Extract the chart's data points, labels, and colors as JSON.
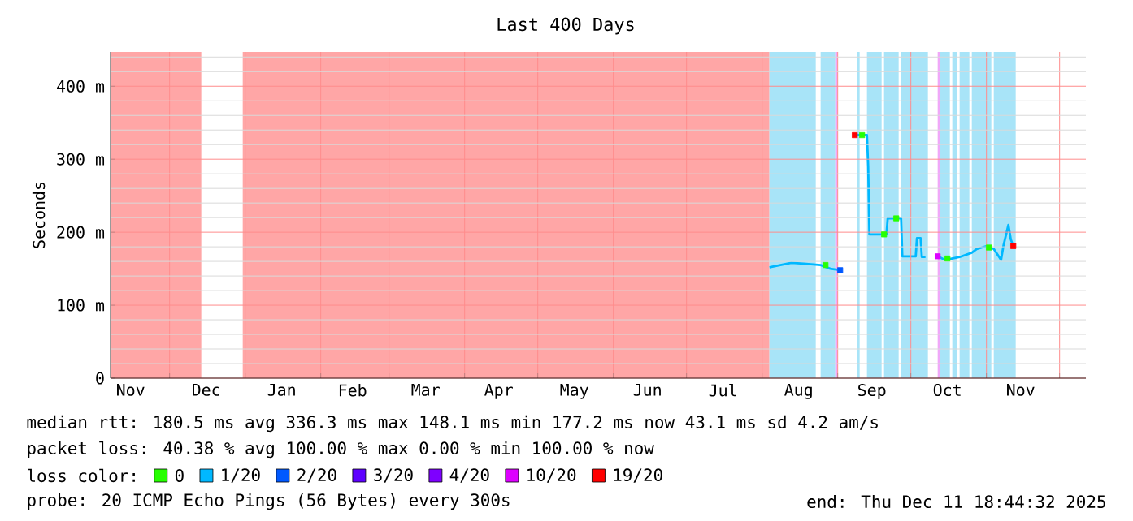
{
  "chart_data": {
    "type": "line",
    "title": "Last 400 Days",
    "ylabel": "Seconds",
    "xlim": [
      "2024-11-06T18:44",
      "2025-12-11T18:44"
    ],
    "xticks": [
      {
        "value": "2024-12-01",
        "label": null
      },
      {
        "value": "2025-01-01",
        "label": null
      },
      {
        "value": "2025-02-01",
        "label": null
      },
      {
        "value": "2025-03-01",
        "label": null
      },
      {
        "value": "2025-04-01",
        "label": null
      },
      {
        "value": "2025-05-01",
        "label": null
      },
      {
        "value": "2025-06-01",
        "label": null
      },
      {
        "value": "2025-07-01",
        "label": null
      },
      {
        "value": "2025-08-01",
        "label": null
      },
      {
        "value": "2025-09-01",
        "label": null
      },
      {
        "value": "2025-10-01",
        "label": null
      },
      {
        "value": "2025-11-01",
        "label": null
      },
      {
        "value": "2025-12-01",
        "label": null
      },
      {
        "value": "2024-11-15",
        "label": "Nov"
      },
      {
        "value": "2024-12-16",
        "label": "Dec"
      },
      {
        "value": "2025-01-16",
        "label": "Jan"
      },
      {
        "value": "2025-02-14",
        "label": "Feb"
      },
      {
        "value": "2025-03-16",
        "label": "Mar"
      },
      {
        "value": "2025-04-15",
        "label": "Apr"
      },
      {
        "value": "2025-05-16",
        "label": "May"
      },
      {
        "value": "2025-06-15",
        "label": "Jun"
      },
      {
        "value": "2025-07-16",
        "label": "Jul"
      },
      {
        "value": "2025-08-16",
        "label": "Aug"
      },
      {
        "value": "2025-09-15",
        "label": "Sep"
      },
      {
        "value": "2025-10-16",
        "label": "Oct"
      },
      {
        "value": "2025-11-15",
        "label": "Nov"
      }
    ],
    "ylim": [
      0,
      447
    ],
    "yticks": [
      0,
      {
        "value": 20,
        "label": null
      },
      {
        "value": 40,
        "label": null
      },
      {
        "value": 60,
        "label": null
      },
      {
        "value": 80,
        "label": null
      },
      {
        "value": 100,
        "label": "100 m"
      },
      {
        "value": 120,
        "label": null
      },
      {
        "value": 140,
        "label": null
      },
      {
        "value": 160,
        "label": null
      },
      {
        "value": 180,
        "label": null
      },
      {
        "value": 200,
        "label": "200 m"
      },
      {
        "value": 220,
        "label": null
      },
      {
        "value": 240,
        "label": null
      },
      {
        "value": 260,
        "label": null
      },
      {
        "value": 280,
        "label": null
      },
      {
        "value": 300,
        "label": "300 m"
      },
      {
        "value": 320,
        "label": null
      },
      {
        "value": 340,
        "label": null
      },
      {
        "value": 360,
        "label": null
      },
      {
        "value": 380,
        "label": null
      },
      {
        "value": 400,
        "label": "400 m"
      },
      {
        "value": 420,
        "label": null
      },
      {
        "value": 440,
        "label": null
      }
    ],
    "grid": true,
    "legend": "bottom",
    "bands": [
      {
        "axis": "x",
        "from": "2024-11-06T18:44",
        "to": "2024-12-14",
        "color": "#ffa6a6"
      },
      {
        "axis": "x",
        "from": "2024-12-31",
        "to": "2025-08-04",
        "color": "#ffa6a6"
      },
      {
        "axis": "x",
        "from": "2025-08-04",
        "to": "2025-08-23",
        "color": "#a8e4f8"
      },
      {
        "axis": "x",
        "from": "2025-08-25",
        "to": "2025-08-31",
        "color": "#a8e4f8"
      },
      {
        "axis": "x",
        "from": "2025-08-31",
        "to": "2025-09-01",
        "color": "#f0a8f8"
      },
      {
        "axis": "x",
        "from": "2025-09-09",
        "to": "2025-09-10",
        "color": "#a8e4f8"
      },
      {
        "axis": "x",
        "from": "2025-09-13",
        "to": "2025-09-19",
        "color": "#a8e4f8"
      },
      {
        "axis": "x",
        "from": "2025-09-20",
        "to": "2025-09-26",
        "color": "#a8e4f8"
      },
      {
        "axis": "x",
        "from": "2025-09-27",
        "to": "2025-10-08",
        "color": "#a8e4f8"
      },
      {
        "axis": "x",
        "from": "2025-10-12",
        "to": "2025-10-13",
        "color": "#f0a8f8"
      },
      {
        "axis": "x",
        "from": "2025-10-13",
        "to": "2025-10-17",
        "color": "#a8e4f8"
      },
      {
        "axis": "x",
        "from": "2025-10-18",
        "to": "2025-10-20",
        "color": "#a8e4f8"
      },
      {
        "axis": "x",
        "from": "2025-10-21",
        "to": "2025-10-25",
        "color": "#a8e4f8"
      },
      {
        "axis": "x",
        "from": "2025-10-26",
        "to": "2025-11-03",
        "color": "#a8e4f8"
      },
      {
        "axis": "x",
        "from": "2025-11-04",
        "to": "2025-11-13",
        "color": "#a8e4f8"
      }
    ],
    "series": [
      {
        "name": "0",
        "color": "#26ff00",
        "type": "scatter",
        "marker": "square",
        "x": [
          "2025-08-27",
          "2025-09-11",
          "2025-09-20",
          "2025-09-25",
          "2025-10-16",
          "2025-11-02"
        ],
        "values": [
          155,
          333,
          197,
          219,
          164,
          179
        ]
      },
      {
        "name": "1/20",
        "color": "#00b8ff",
        "type": "line",
        "x": [
          "2025-08-04",
          "2025-08-13",
          "2025-08-18",
          "2025-08-25",
          "2025-08-29",
          "2025-09-02",
          "2025-09-05",
          "2025-09-09",
          "2025-09-13",
          "2025-09-13T12:00",
          "2025-09-14",
          "2025-09-21",
          "2025-09-21T12:00",
          "2025-09-27",
          "2025-09-27T12:00",
          "2025-10-03",
          "2025-10-03T12:00",
          "2025-10-05",
          "2025-10-05T12:00",
          "2025-10-07",
          "2025-10-10",
          "2025-10-12",
          "2025-10-15",
          "2025-10-21",
          "2025-10-26",
          "2025-10-28",
          "2025-11-01",
          "2025-11-04",
          "2025-11-07",
          "2025-11-08",
          "2025-11-10",
          "2025-11-11",
          "2025-11-12"
        ],
        "values": [
          152,
          158,
          157,
          155,
          150,
          148,
          null,
          333,
          333,
          290,
          197,
          197,
          219,
          219,
          167,
          167,
          192,
          192,
          166,
          166,
          null,
          167,
          162,
          166,
          172,
          177,
          181,
          177,
          162,
          182,
          210,
          190,
          181
        ]
      },
      {
        "name": "2/20",
        "color": "#0059ff",
        "type": "scatter",
        "marker": "square",
        "x": [
          "2025-09-02"
        ],
        "values": [
          148
        ]
      },
      {
        "name": "3/20",
        "color": "#5e00ff",
        "type": "scatter",
        "marker": "square"
      },
      {
        "name": "4/20",
        "color": "#7e00ff",
        "type": "scatter",
        "marker": "square"
      },
      {
        "name": "10/20",
        "color": "#dd00ff",
        "type": "scatter",
        "marker": "square",
        "x": [
          "2025-10-12"
        ],
        "values": [
          167
        ]
      },
      {
        "name": "19/20",
        "color": "#ff0000",
        "type": "scatter",
        "marker": "square",
        "x": [
          "2025-09-08",
          "2025-11-12"
        ],
        "values": [
          333,
          181
        ]
      }
    ],
    "annotations": [
      "median rtt: 180.5 ms avg 336.3 ms max 148.1 ms min 177.2 ms now 43.1 ms sd 4.2 am/s",
      "packet loss: 40.38 % avg 100.00 % max 0.00 % min 100.00 % now",
      "loss color:",
      "probe: 20 ICMP Echo Pings (56 Bytes) every 300s",
      "end: Thu Dec 11 18:44:32 2025"
    ]
  }
}
